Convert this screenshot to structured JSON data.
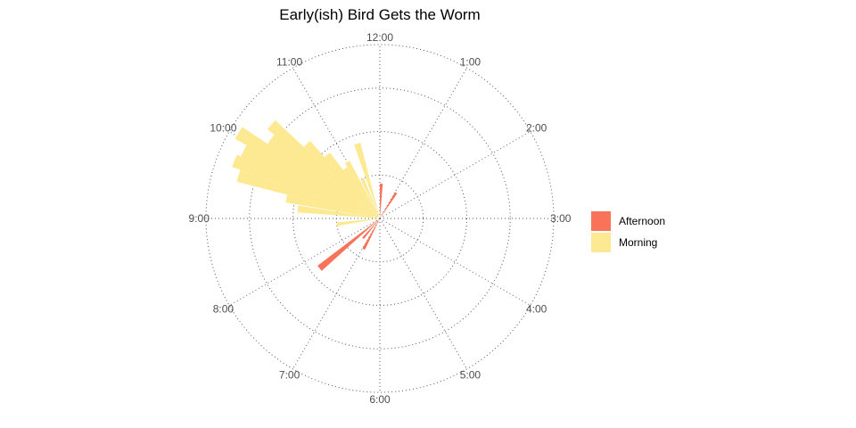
{
  "chart_data": {
    "type": "bar",
    "coordinate_system": "polar",
    "title": "Early(ish) Bird Gets the Worm",
    "xlabel": "",
    "ylabel": "",
    "angle_axis": {
      "unit": "hour of clock face",
      "range": [
        0,
        12
      ],
      "ticks": [
        0,
        1,
        2,
        3,
        4,
        5,
        6,
        7,
        8,
        9,
        10,
        11
      ],
      "tick_labels": [
        "12:00",
        "1:00",
        "2:00",
        "3:00",
        "4:00",
        "5:00",
        "6:00",
        "7:00",
        "8:00",
        "9:00",
        "10:00",
        "11:00"
      ]
    },
    "radial_axis": {
      "range": [
        0,
        4
      ],
      "gridlines": [
        1,
        2,
        3,
        4
      ]
    },
    "grid": true,
    "legend_position": "right",
    "colors": {
      "Afternoon": "#f8735a",
      "Morning": "#fde991"
    },
    "bar_width_hours": 0.16,
    "series": [
      {
        "name": "Afternoon",
        "color": "#f8735a",
        "points": [
          {
            "x": 0.08,
            "y": 0.8
          },
          {
            "x": 1.08,
            "y": 0.7
          },
          {
            "x": 6.93,
            "y": 0.8
          },
          {
            "x": 7.34,
            "y": 0.6
          },
          {
            "x": 7.68,
            "y": 1.8
          }
        ]
      },
      {
        "name": "Morning",
        "color": "#fde991",
        "points": [
          {
            "x": 8.75,
            "y": 1.0
          },
          {
            "x": 9.22,
            "y": 1.9
          },
          {
            "x": 9.4,
            "y": 2.2
          },
          {
            "x": 9.56,
            "y": 3.4
          },
          {
            "x": 9.72,
            "y": 3.6
          },
          {
            "x": 9.88,
            "y": 3.5
          },
          {
            "x": 10.04,
            "y": 3.8
          },
          {
            "x": 10.2,
            "y": 3.1
          },
          {
            "x": 10.36,
            "y": 3.3
          },
          {
            "x": 10.52,
            "y": 2.4
          },
          {
            "x": 10.68,
            "y": 1.9
          },
          {
            "x": 10.84,
            "y": 1.4
          },
          {
            "x": 11.0,
            "y": 1.5
          },
          {
            "x": 11.2,
            "y": 1.0
          },
          {
            "x": 11.44,
            "y": 1.8
          }
        ]
      }
    ]
  }
}
